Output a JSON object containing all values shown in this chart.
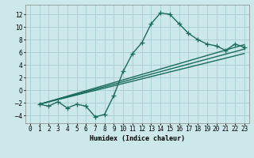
{
  "xlabel": "Humidex (Indice chaleur)",
  "ylabel": "",
  "xlim": [
    -0.5,
    23.5
  ],
  "ylim": [
    -5.2,
    13.5
  ],
  "yticks": [
    -4,
    -2,
    0,
    2,
    4,
    6,
    8,
    10,
    12
  ],
  "xticks": [
    0,
    1,
    2,
    3,
    4,
    5,
    6,
    7,
    8,
    9,
    10,
    11,
    12,
    13,
    14,
    15,
    16,
    17,
    18,
    19,
    20,
    21,
    22,
    23
  ],
  "xtick_labels": [
    "0",
    "1",
    "2",
    "3",
    "4",
    "5",
    "6",
    "7",
    "8",
    "9",
    "10",
    "11",
    "12",
    "13",
    "14",
    "15",
    "16",
    "17",
    "18",
    "19",
    "20",
    "21",
    "22",
    "23"
  ],
  "background_color": "#cde8eb",
  "grid_color": "#aad0d5",
  "line_color": "#1a6b5a",
  "line_width": 1.0,
  "marker": "+",
  "marker_size": 4,
  "main_curve": [
    null,
    -2.2,
    -2.5,
    -1.8,
    -2.8,
    -2.2,
    -2.5,
    -4.2,
    -3.8,
    -0.8,
    3.0,
    5.8,
    7.5,
    10.5,
    12.2,
    12.0,
    10.5,
    9.0,
    8.0,
    7.3,
    7.0,
    6.3,
    7.3,
    6.8
  ],
  "regression_lines": [
    {
      "x1": 1,
      "y1": -2.2,
      "x2": 23,
      "y2": 7.2
    },
    {
      "x1": 1,
      "y1": -2.2,
      "x2": 23,
      "y2": 6.5
    },
    {
      "x1": 1,
      "y1": -2.2,
      "x2": 23,
      "y2": 5.8
    }
  ]
}
